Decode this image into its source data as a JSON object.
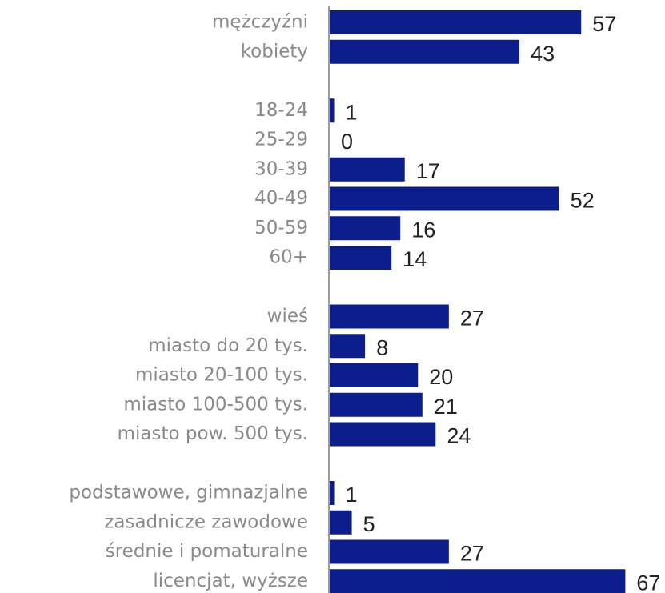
{
  "chart_data": {
    "type": "bar",
    "orientation": "horizontal",
    "categories": [
      "mężczyźni",
      "kobiety",
      null,
      "18-24",
      "25-29",
      "30-39",
      "40-49",
      "50-59",
      "60+",
      null,
      "wieś",
      "miasto do 20 tys.",
      "miasto 20-100 tys.",
      "miasto 100-500 tys.",
      "miasto pow. 500 tys.",
      null,
      "podstawowe, gimnazjalne",
      "zasadnicze zawodowe",
      "średnie i pomaturalne",
      "licencjat, wyższe"
    ],
    "values": [
      57,
      43,
      null,
      1,
      0,
      17,
      52,
      16,
      14,
      null,
      27,
      8,
      20,
      21,
      24,
      null,
      1,
      5,
      27,
      67
    ],
    "color": "#0c1e8c",
    "xlim": [
      0,
      76
    ]
  }
}
